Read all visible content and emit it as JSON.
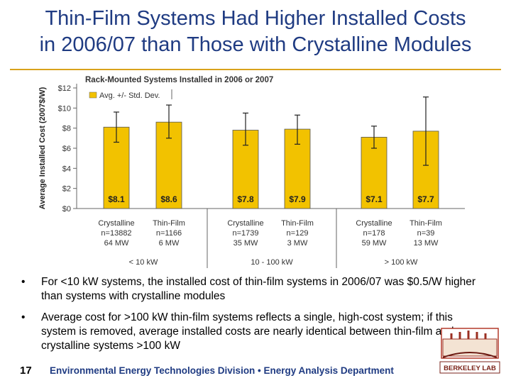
{
  "slide": {
    "title_line1": "Thin-Film Systems Had Higher Installed Costs",
    "title_line2": "in 2006/07 than Those with Crystalline Modules"
  },
  "chart_data": {
    "type": "bar",
    "title": "Rack-Mounted Systems Installed in 2006 or 2007",
    "ylabel": "Average Installed Cost (2007$/W)",
    "ylim": [
      0,
      12
    ],
    "yticks": [
      "$0",
      "$2",
      "$4",
      "$6",
      "$8",
      "$10",
      "$12"
    ],
    "legend": {
      "label": "Avg. +/- Std. Dev.",
      "position": "top-left"
    },
    "bar_color": "#f2c200",
    "groups": [
      {
        "label": "< 10 kW",
        "bars": [
          {
            "category": "Crystalline",
            "n": "n=13882",
            "mw": "64 MW",
            "value": 8.1,
            "value_label": "$8.1",
            "low": 6.6,
            "high": 9.6
          },
          {
            "category": "Thin-Film",
            "n": "n=1166",
            "mw": "6 MW",
            "value": 8.6,
            "value_label": "$8.6",
            "low": 7.0,
            "high": 10.3
          }
        ]
      },
      {
        "label": "10 - 100 kW",
        "bars": [
          {
            "category": "Crystalline",
            "n": "n=1739",
            "mw": "35 MW",
            "value": 7.8,
            "value_label": "$7.8",
            "low": 6.3,
            "high": 9.5
          },
          {
            "category": "Thin-Film",
            "n": "n=129",
            "mw": "3 MW",
            "value": 7.9,
            "value_label": "$7.9",
            "low": 6.4,
            "high": 9.3
          }
        ]
      },
      {
        "label": "> 100 kW",
        "bars": [
          {
            "category": "Crystalline",
            "n": "n=178",
            "mw": "59 MW",
            "value": 7.1,
            "value_label": "$7.1",
            "low": 6.0,
            "high": 8.2
          },
          {
            "category": "Thin-Film",
            "n": "n=39",
            "mw": "13 MW",
            "value": 7.7,
            "value_label": "$7.7",
            "low": 4.3,
            "high": 11.1
          }
        ]
      }
    ]
  },
  "bullets": [
    "For <10 kW systems, the installed cost of thin-film systems in 2006/07 was $0.5/W higher than systems with crystalline modules",
    "Average cost for >100 kW thin-film systems reflects a single, high-cost system; if this system is removed, average installed costs are nearly identical between thin-film and crystalline systems >100 kW"
  ],
  "footer": {
    "page_number": "17",
    "text": "Environmental Energy Technologies Division • Energy Analysis Department",
    "logo_text": "BERKELEY LAB"
  },
  "colors": {
    "title": "#1f3b82",
    "rule": "#d9a21b",
    "bar": "#f2c200"
  }
}
